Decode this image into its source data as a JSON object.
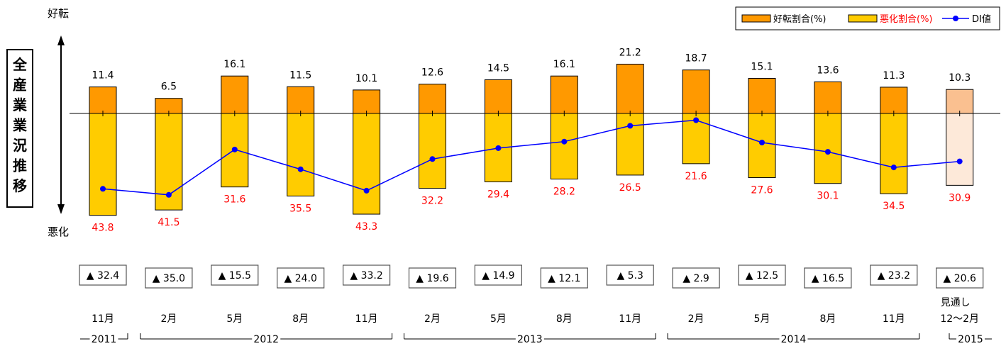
{
  "chart_data": {
    "type": "bar",
    "categories": [
      "11月",
      "2月",
      "5月",
      "8月",
      "11月",
      "2月",
      "5月",
      "8月",
      "11月",
      "2月",
      "5月",
      "8月",
      "11月",
      "見通し\n12〜2月"
    ],
    "series": [
      {
        "name": "好転割合(%)",
        "values": [
          11.4,
          6.5,
          16.1,
          11.5,
          10.1,
          12.6,
          14.5,
          16.1,
          21.2,
          18.7,
          15.1,
          13.6,
          11.3,
          10.3
        ],
        "color": "#FF9900"
      },
      {
        "name": "悪化割合(%)",
        "values": [
          43.8,
          41.5,
          31.6,
          35.5,
          43.3,
          32.2,
          29.4,
          28.2,
          26.5,
          21.6,
          27.6,
          30.1,
          34.5,
          30.9
        ],
        "color": "#FFCC00"
      },
      {
        "name": "DI値",
        "values": [
          -32.4,
          -35.0,
          -15.5,
          -24.0,
          -33.2,
          -19.6,
          -14.9,
          -12.1,
          -5.3,
          -2.9,
          -12.5,
          -16.5,
          -23.2,
          -20.6
        ],
        "color": "#0000FF"
      }
    ],
    "di_labels": [
      "▲ 32.4",
      "▲ 35.0",
      "▲ 15.5",
      "▲ 24.0",
      "▲ 33.2",
      "▲ 19.6",
      "▲ 14.9",
      "▲ 12.1",
      "▲ 5.3",
      "▲ 2.9",
      "▲ 12.5",
      "▲ 16.5",
      "▲ 23.2",
      "▲ 20.6"
    ],
    "forecast_index": 13,
    "forecast_colors": {
      "improve": "#FAC090",
      "worsen": "#FDE9D9"
    },
    "title": "全産業業況推移",
    "axis_top_label": "好転",
    "axis_bottom_label": "悪化",
    "legend_position": "top-right",
    "years": [
      {
        "label": "2011",
        "from": 0,
        "to": 0
      },
      {
        "label": "2012",
        "from": 1,
        "to": 4
      },
      {
        "label": "2013",
        "from": 5,
        "to": 8
      },
      {
        "label": "2014",
        "from": 9,
        "to": 12
      },
      {
        "label": "2015",
        "from": 13,
        "to": 13
      }
    ],
    "colors": {
      "up_label": "#000000",
      "down_label": "#FF0000",
      "axis": "#000000"
    }
  }
}
